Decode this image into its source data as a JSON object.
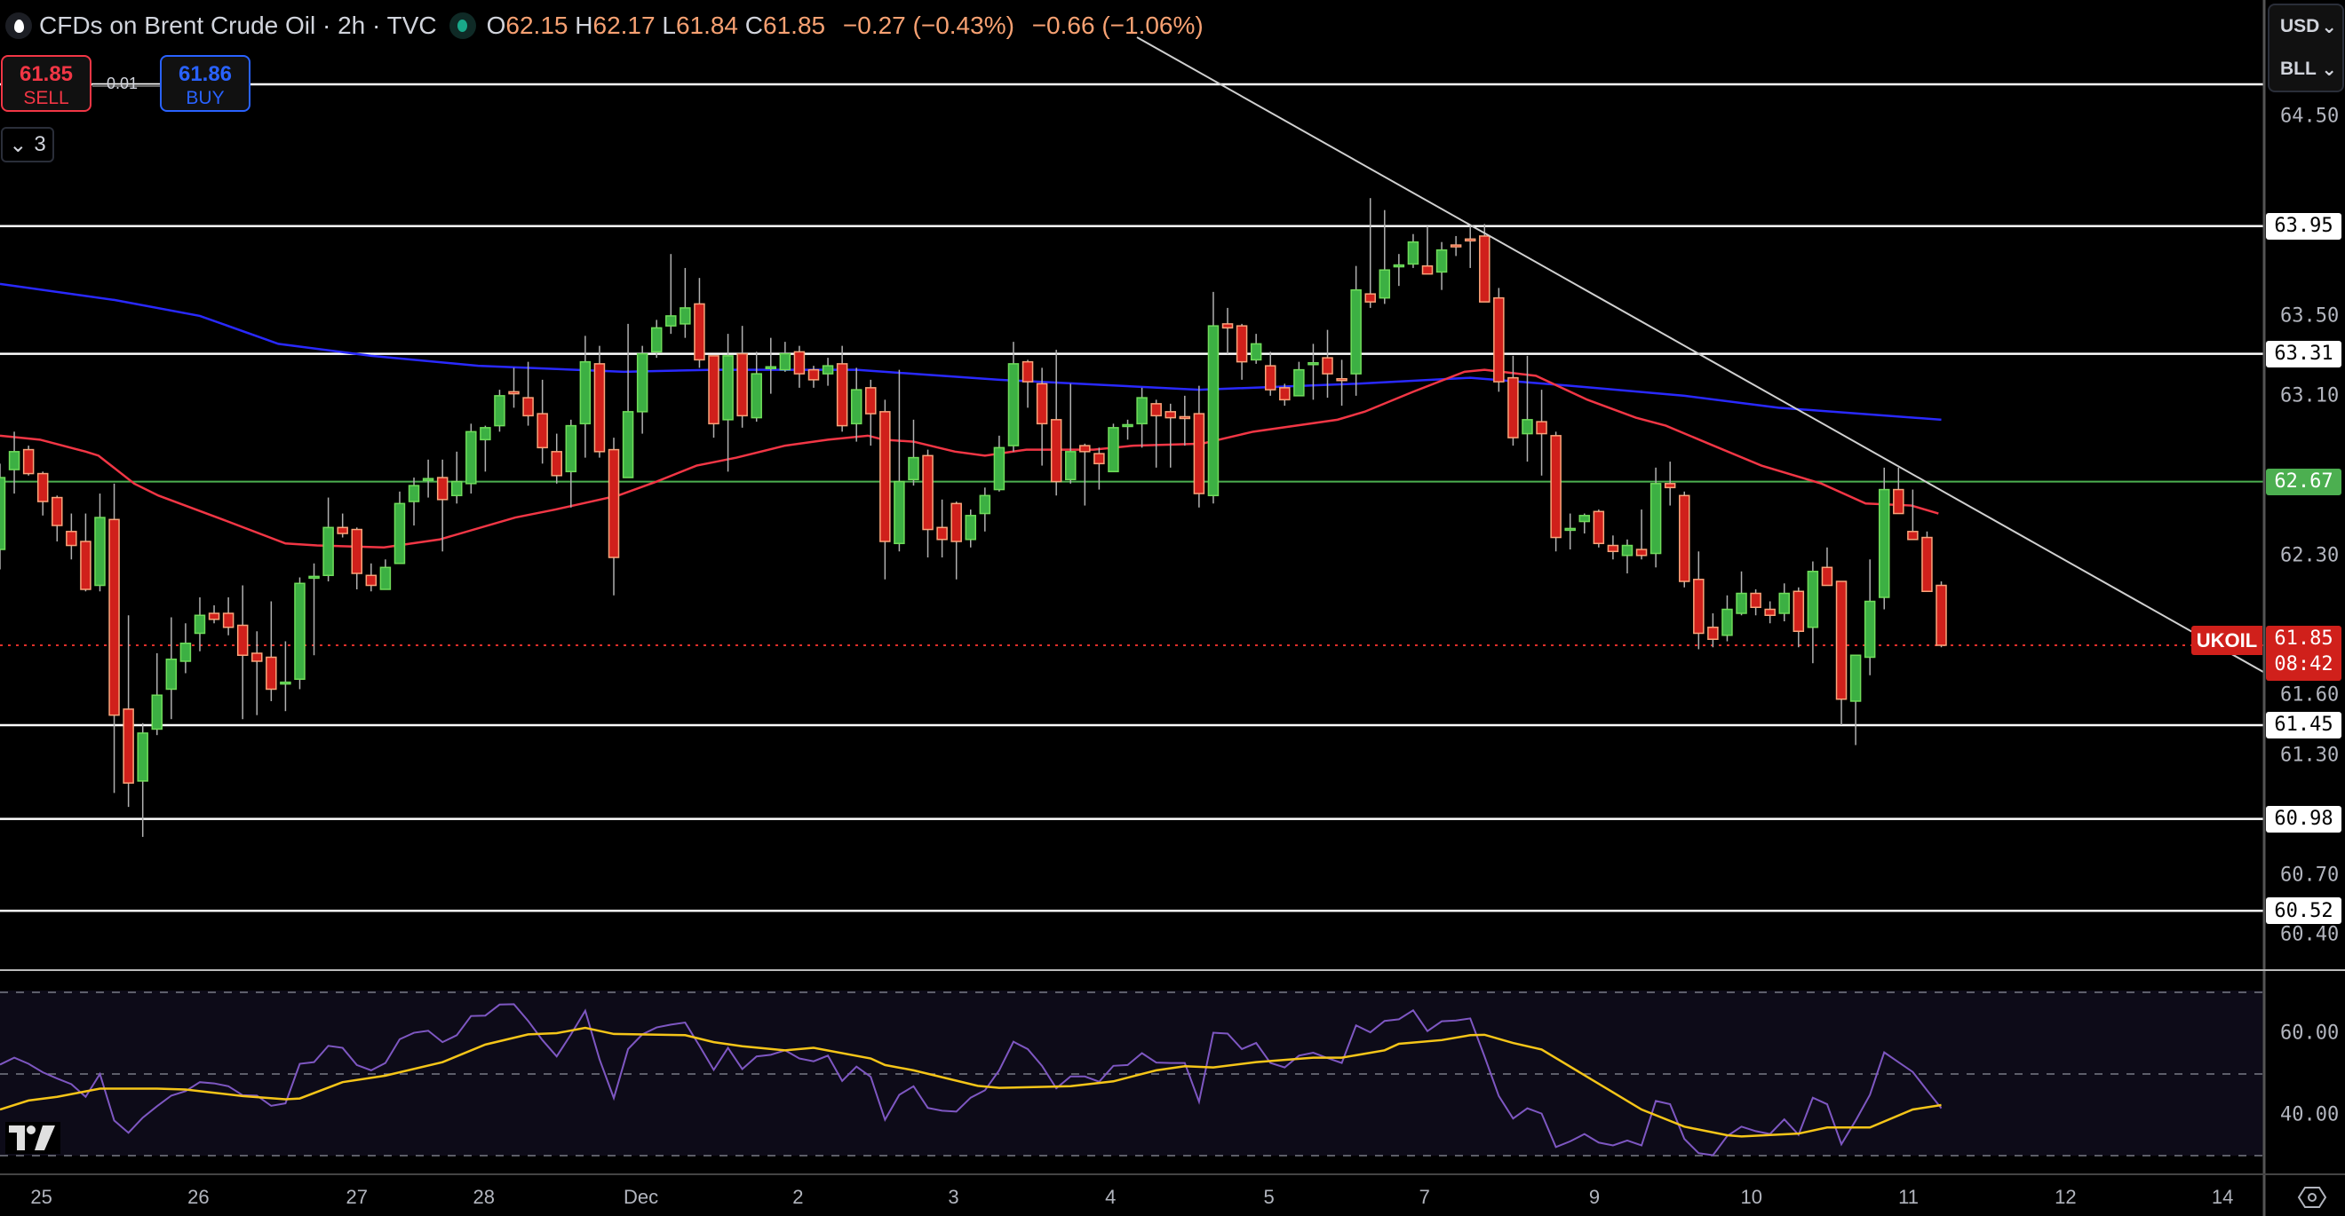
{
  "header": {
    "title": "CFDs on Brent Crude Oil · 2h · TVC",
    "o_label": "O",
    "o": "62.15",
    "h_label": "H",
    "h": "62.17",
    "l_label": "L",
    "l": "61.84",
    "c_label": "C",
    "c": "61.85",
    "change": "−0.27 (−0.43%)",
    "change2": "−0.66 (−1.06%)"
  },
  "trade": {
    "sell_price": "61.85",
    "sell_label": "SELL",
    "buy_price": "61.86",
    "buy_label": "BUY",
    "spread": "0.01"
  },
  "indicators_toggle": {
    "count": "3",
    "icon": "chevron-down-icon"
  },
  "axis_menu": {
    "currency": "USD",
    "unit": "BLL"
  },
  "symbol_tag": "UKOIL",
  "last_price": {
    "price": "61.85",
    "countdown": "08:42"
  },
  "colors": {
    "up": "#3cb043",
    "up_border": "#6fdc5a",
    "down": "#d0201b",
    "down_border": "#f9a47a",
    "ma_fast": "#f23645",
    "ma_slow": "#2929ff",
    "rsi": "#7e57c2",
    "rsi_ma": "#f5c518",
    "support_line": "#ffffff",
    "pivot_line": "#4caf50"
  },
  "chart_data": {
    "type": "candlestick",
    "symbol": "UKOIL",
    "interval": "2h",
    "price_ticks": [
      "64.50",
      "63.50",
      "63.10",
      "62.30",
      "61.60",
      "61.30",
      "60.70",
      "60.40"
    ],
    "levels": [
      {
        "value": 64.66,
        "label": "",
        "kind": "white"
      },
      {
        "value": 63.95,
        "label": "63.95",
        "kind": "white"
      },
      {
        "value": 63.31,
        "label": "63.31",
        "kind": "white"
      },
      {
        "value": 62.67,
        "label": "62.67",
        "kind": "green"
      },
      {
        "value": 61.45,
        "label": "61.45",
        "kind": "white"
      },
      {
        "value": 60.98,
        "label": "60.98",
        "kind": "white"
      },
      {
        "value": 60.52,
        "label": "60.52",
        "kind": "white"
      }
    ],
    "last_close": 61.85,
    "time_ticks": [
      {
        "label": "25",
        "index": 2.9
      },
      {
        "label": "26",
        "index": 13.9
      },
      {
        "label": "27",
        "index": 25
      },
      {
        "label": "28",
        "index": 33.9
      },
      {
        "label": "Dec",
        "index": 44.9
      },
      {
        "label": "2",
        "index": 55.9
      },
      {
        "label": "3",
        "index": 66.8
      },
      {
        "label": "4",
        "index": 77.8
      },
      {
        "label": "5",
        "index": 88.9
      },
      {
        "label": "7",
        "index": 99.8
      },
      {
        "label": "9",
        "index": 111.7
      },
      {
        "label": "10",
        "index": 122.7
      },
      {
        "label": "11",
        "index": 133.7
      },
      {
        "label": "12",
        "index": 144.7
      },
      {
        "label": "14",
        "index": 155.7
      }
    ],
    "ohlc": [
      [
        62.33,
        62.76,
        62.23,
        62.69
      ],
      [
        62.73,
        62.92,
        62.61,
        62.82
      ],
      [
        62.83,
        62.85,
        62.7,
        62.71
      ],
      [
        62.71,
        62.72,
        62.5,
        62.57
      ],
      [
        62.59,
        62.6,
        62.37,
        62.45
      ],
      [
        62.42,
        62.51,
        62.28,
        62.35
      ],
      [
        62.37,
        62.51,
        62.12,
        62.13
      ],
      [
        62.15,
        62.61,
        62.12,
        62.49
      ],
      [
        62.48,
        62.66,
        61.11,
        61.5
      ],
      [
        61.53,
        62.0,
        61.04,
        61.16
      ],
      [
        61.17,
        61.46,
        60.89,
        61.41
      ],
      [
        61.43,
        61.81,
        61.4,
        61.6
      ],
      [
        61.63,
        61.99,
        61.48,
        61.78
      ],
      [
        61.77,
        61.96,
        61.71,
        61.86
      ],
      [
        61.91,
        62.09,
        61.82,
        62.0
      ],
      [
        62.01,
        62.05,
        61.96,
        61.98
      ],
      [
        62.01,
        62.09,
        61.9,
        61.94
      ],
      [
        61.95,
        62.15,
        61.48,
        61.8
      ],
      [
        61.81,
        61.92,
        61.5,
        61.77
      ],
      [
        61.79,
        62.07,
        61.57,
        61.63
      ],
      [
        61.66,
        61.87,
        61.52,
        61.665
      ],
      [
        61.68,
        62.19,
        61.63,
        62.16
      ],
      [
        62.19,
        62.26,
        61.8,
        62.195
      ],
      [
        62.2,
        62.59,
        62.17,
        62.44
      ],
      [
        62.44,
        62.51,
        62.39,
        62.41
      ],
      [
        62.43,
        62.44,
        62.13,
        62.21
      ],
      [
        62.2,
        62.26,
        62.12,
        62.15
      ],
      [
        62.13,
        62.28,
        62.13,
        62.24
      ],
      [
        62.26,
        62.62,
        62.26,
        62.56
      ],
      [
        62.57,
        62.69,
        62.45,
        62.65
      ],
      [
        62.68,
        62.78,
        62.59,
        62.685
      ],
      [
        62.69,
        62.78,
        62.32,
        62.58
      ],
      [
        62.6,
        62.82,
        62.56,
        62.67
      ],
      [
        62.66,
        62.96,
        62.61,
        62.92
      ],
      [
        62.88,
        62.95,
        62.72,
        62.94
      ],
      [
        62.95,
        63.13,
        62.92,
        63.1
      ],
      [
        63.12,
        63.24,
        63.04,
        63.11
      ],
      [
        63.09,
        63.27,
        62.95,
        63.0
      ],
      [
        63.01,
        63.18,
        62.76,
        62.84
      ],
      [
        62.82,
        62.91,
        62.66,
        62.7
      ],
      [
        62.72,
        62.98,
        62.54,
        62.95
      ],
      [
        62.96,
        63.4,
        62.79,
        63.27
      ],
      [
        63.26,
        63.35,
        62.79,
        62.82
      ],
      [
        62.83,
        62.89,
        62.1,
        62.29
      ],
      [
        62.69,
        63.46,
        62.69,
        63.02
      ],
      [
        63.02,
        63.35,
        62.91,
        63.31
      ],
      [
        63.32,
        63.48,
        63.29,
        63.44
      ],
      [
        63.45,
        63.81,
        63.41,
        63.5
      ],
      [
        63.46,
        63.74,
        63.39,
        63.54
      ],
      [
        63.56,
        63.69,
        63.24,
        63.28
      ],
      [
        63.3,
        63.3,
        62.89,
        62.96
      ],
      [
        62.98,
        63.41,
        62.72,
        63.3
      ],
      [
        63.31,
        63.45,
        62.94,
        63.0
      ],
      [
        62.99,
        63.32,
        62.97,
        63.21
      ],
      [
        63.24,
        63.39,
        63.11,
        63.245
      ],
      [
        63.23,
        63.37,
        63.22,
        63.31
      ],
      [
        63.32,
        63.35,
        63.14,
        63.21
      ],
      [
        63.23,
        63.25,
        63.14,
        63.18
      ],
      [
        63.21,
        63.29,
        63.15,
        63.25
      ],
      [
        63.26,
        63.35,
        62.92,
        62.95
      ],
      [
        62.96,
        63.24,
        62.87,
        63.13
      ],
      [
        63.14,
        63.18,
        62.85,
        63.01
      ],
      [
        63.02,
        63.08,
        62.18,
        62.37
      ],
      [
        62.36,
        63.23,
        62.32,
        62.67
      ],
      [
        62.68,
        62.98,
        62.65,
        62.79
      ],
      [
        62.8,
        62.83,
        62.29,
        62.43
      ],
      [
        62.44,
        62.58,
        62.29,
        62.38
      ],
      [
        62.56,
        62.57,
        62.18,
        62.37
      ],
      [
        62.38,
        62.53,
        62.34,
        62.5
      ],
      [
        62.51,
        62.64,
        62.42,
        62.6
      ],
      [
        62.63,
        62.9,
        62.62,
        62.84
      ],
      [
        62.85,
        63.37,
        62.82,
        63.26
      ],
      [
        63.27,
        63.28,
        63.04,
        63.17
      ],
      [
        63.16,
        63.24,
        62.75,
        62.96
      ],
      [
        62.98,
        63.33,
        62.6,
        62.67
      ],
      [
        62.68,
        63.16,
        62.66,
        62.82
      ],
      [
        62.85,
        62.86,
        62.55,
        62.82
      ],
      [
        62.81,
        62.84,
        62.63,
        62.76
      ],
      [
        62.72,
        62.96,
        62.72,
        62.94
      ],
      [
        62.95,
        62.98,
        62.88,
        62.955
      ],
      [
        62.96,
        63.14,
        62.84,
        63.09
      ],
      [
        63.06,
        63.08,
        62.74,
        63.0
      ],
      [
        63.02,
        63.06,
        62.74,
        62.99
      ],
      [
        62.995,
        63.1,
        62.85,
        62.99
      ],
      [
        63.01,
        63.15,
        62.54,
        62.61
      ],
      [
        62.6,
        63.62,
        62.56,
        63.45
      ],
      [
        63.46,
        63.54,
        63.31,
        63.44
      ],
      [
        63.45,
        63.46,
        63.18,
        63.27
      ],
      [
        63.28,
        63.41,
        63.26,
        63.36
      ],
      [
        63.25,
        63.32,
        63.1,
        63.13
      ],
      [
        63.14,
        63.16,
        63.05,
        63.08
      ],
      [
        63.1,
        63.27,
        63.1,
        63.23
      ],
      [
        63.26,
        63.36,
        63.08,
        63.265
      ],
      [
        63.29,
        63.43,
        63.09,
        63.21
      ],
      [
        63.185,
        63.28,
        63.05,
        63.18
      ],
      [
        63.21,
        63.75,
        63.1,
        63.63
      ],
      [
        63.61,
        64.09,
        63.54,
        63.57
      ],
      [
        63.59,
        64.03,
        63.56,
        63.73
      ],
      [
        63.75,
        63.81,
        63.65,
        63.755
      ],
      [
        63.76,
        63.91,
        63.74,
        63.87
      ],
      [
        63.75,
        63.95,
        63.71,
        63.71
      ],
      [
        63.72,
        63.87,
        63.63,
        63.83
      ],
      [
        63.855,
        63.9,
        63.8,
        63.85
      ],
      [
        63.885,
        63.95,
        63.74,
        63.88
      ],
      [
        63.9,
        63.96,
        63.57,
        63.57
      ],
      [
        63.59,
        63.64,
        63.12,
        63.17
      ],
      [
        63.19,
        63.3,
        62.85,
        62.89
      ],
      [
        62.91,
        63.3,
        62.77,
        62.98
      ],
      [
        62.97,
        63.13,
        62.7,
        62.91
      ],
      [
        62.9,
        62.92,
        62.32,
        62.39
      ],
      [
        62.43,
        62.51,
        62.33,
        62.435
      ],
      [
        62.47,
        62.51,
        62.41,
        62.5
      ],
      [
        62.52,
        62.53,
        62.34,
        62.36
      ],
      [
        62.35,
        62.4,
        62.28,
        62.32
      ],
      [
        62.3,
        62.38,
        62.21,
        62.35
      ],
      [
        62.33,
        62.53,
        62.28,
        62.3
      ],
      [
        62.31,
        62.74,
        62.24,
        62.66
      ],
      [
        62.66,
        62.77,
        62.55,
        62.64
      ],
      [
        62.6,
        62.62,
        62.14,
        62.17
      ],
      [
        62.18,
        62.32,
        61.83,
        61.91
      ],
      [
        61.94,
        62.01,
        61.84,
        61.88
      ],
      [
        61.9,
        62.1,
        61.87,
        62.03
      ],
      [
        62.01,
        62.22,
        62.0,
        62.11
      ],
      [
        62.11,
        62.13,
        62.0,
        62.04
      ],
      [
        62.03,
        62.07,
        61.96,
        62.0
      ],
      [
        62.01,
        62.16,
        61.97,
        62.11
      ],
      [
        62.12,
        62.14,
        61.84,
        61.92
      ],
      [
        61.94,
        62.27,
        61.76,
        62.22
      ],
      [
        62.24,
        62.34,
        62.15,
        62.15
      ],
      [
        62.17,
        62.17,
        61.45,
        61.58
      ],
      [
        61.57,
        61.8,
        61.35,
        61.8
      ],
      [
        61.79,
        62.28,
        61.7,
        62.07
      ],
      [
        62.09,
        62.74,
        62.03,
        62.63
      ],
      [
        62.63,
        62.74,
        62.51,
        62.51
      ],
      [
        62.42,
        62.63,
        62.38,
        62.38
      ],
      [
        62.39,
        62.42,
        62.12,
        62.12
      ],
      [
        62.15,
        62.17,
        61.84,
        61.85
      ]
    ],
    "ma_slow": [
      [
        0,
        63.66
      ],
      [
        8,
        63.58
      ],
      [
        14,
        63.5
      ],
      [
        19.5,
        63.36
      ],
      [
        26,
        63.3
      ],
      [
        33.5,
        63.25
      ],
      [
        43.7,
        63.22
      ],
      [
        50,
        63.23
      ],
      [
        60,
        63.23
      ],
      [
        70,
        63.18
      ],
      [
        84,
        63.13
      ],
      [
        95,
        63.16
      ],
      [
        103,
        63.19
      ],
      [
        110,
        63.15
      ],
      [
        118,
        63.1
      ],
      [
        124.6,
        63.04
      ],
      [
        136,
        62.98
      ]
    ],
    "ma_fast": [
      [
        0,
        62.9
      ],
      [
        2.8,
        62.88
      ],
      [
        6,
        62.82
      ],
      [
        6.9,
        62.8
      ],
      [
        9.4,
        62.66
      ],
      [
        11.1,
        62.6
      ],
      [
        15.6,
        62.48
      ],
      [
        20,
        62.36
      ],
      [
        22.2,
        62.35
      ],
      [
        26.9,
        62.34
      ],
      [
        30.8,
        62.38
      ],
      [
        36.1,
        62.49
      ],
      [
        38.9,
        62.53
      ],
      [
        43.3,
        62.6
      ],
      [
        46,
        62.67
      ],
      [
        48.8,
        62.75
      ],
      [
        51.6,
        62.79
      ],
      [
        55,
        62.85
      ],
      [
        58,
        62.88
      ],
      [
        60.8,
        62.9
      ],
      [
        61.9,
        62.88
      ],
      [
        64,
        62.87
      ],
      [
        66.9,
        62.82
      ],
      [
        69,
        62.8
      ],
      [
        71.9,
        62.83
      ],
      [
        76.6,
        62.83
      ],
      [
        79.4,
        62.85
      ],
      [
        84.2,
        62.86
      ],
      [
        87.8,
        62.92
      ],
      [
        93.7,
        62.98
      ],
      [
        95.6,
        63.02
      ],
      [
        99,
        63.12
      ],
      [
        102.6,
        63.22
      ],
      [
        104,
        63.23
      ],
      [
        107.6,
        63.2
      ],
      [
        111.2,
        63.08
      ],
      [
        114.6,
        62.99
      ],
      [
        116.7,
        62.95
      ],
      [
        119.7,
        62.86
      ],
      [
        123.4,
        62.75
      ],
      [
        127.6,
        62.66
      ],
      [
        130.7,
        62.56
      ],
      [
        133.9,
        62.55
      ],
      [
        135.8,
        62.51
      ]
    ],
    "rsi_ticks": [
      "60.00",
      "40.00"
    ],
    "rsi_levels": [
      70,
      50,
      30
    ],
    "rsi": [
      52.3,
      54.0,
      52.5,
      50.4,
      48.9,
      47.5,
      44.4,
      50.0,
      38.6,
      35.6,
      39.3,
      42.1,
      44.7,
      45.8,
      48.0,
      47.7,
      47.0,
      44.8,
      44.7,
      42.2,
      42.8,
      52.5,
      52.9,
      56.9,
      56.4,
      52.2,
      50.9,
      52.7,
      58.5,
      60.1,
      60.6,
      57.8,
      59.5,
      64.2,
      64.3,
      67.0,
      67.1,
      63.0,
      58.3,
      54.3,
      59.7,
      65.5,
      53.6,
      44.1,
      56.1,
      59.7,
      61.4,
      62.1,
      62.6,
      56.9,
      51.0,
      56.4,
      51.2,
      54.3,
      54.7,
      55.8,
      53.8,
      53.1,
      54.5,
      48.3,
      51.8,
      49.3,
      38.8,
      44.9,
      47.0,
      41.7,
      41.0,
      40.8,
      44.2,
      46.0,
      50.9,
      57.9,
      56.1,
      52.0,
      46.5,
      49.4,
      49.4,
      48.1,
      52.0,
      52.2,
      55.1,
      52.8,
      52.7,
      52.7,
      43.2,
      60.1,
      59.9,
      56.1,
      57.6,
      52.7,
      51.6,
      54.5,
      55.2,
      53.9,
      52.7,
      61.9,
      60.2,
      63.0,
      63.4,
      65.6,
      60.5,
      62.9,
      63.1,
      63.6,
      54.3,
      44.6,
      39.1,
      41.6,
      40.3,
      32.1,
      33.5,
      35.3,
      33.2,
      32.5,
      33.7,
      32.5,
      43.4,
      42.6,
      34.1,
      30.6,
      30.1,
      34.8,
      37.1,
      36.0,
      35.3,
      38.9,
      35.1,
      44.2,
      42.6,
      32.8,
      38.6,
      44.9,
      55.3,
      52.9,
      50.5,
      46.0,
      41.6
    ],
    "rsi_ma": [
      [
        0,
        41.3
      ],
      [
        2,
        43.5
      ],
      [
        4,
        44.4
      ],
      [
        7,
        46.4
      ],
      [
        11,
        46.4
      ],
      [
        13,
        46.2
      ],
      [
        17,
        44.6
      ],
      [
        20,
        43.8
      ],
      [
        21,
        44.0
      ],
      [
        24,
        48.0
      ],
      [
        27,
        49.6
      ],
      [
        31,
        52.9
      ],
      [
        34,
        57.2
      ],
      [
        37,
        59.7
      ],
      [
        39,
        60.0
      ],
      [
        41,
        61.3
      ],
      [
        43,
        59.8
      ],
      [
        48,
        59.5
      ],
      [
        50,
        57.8
      ],
      [
        52,
        56.8
      ],
      [
        55,
        55.8
      ],
      [
        57,
        56.4
      ],
      [
        61,
        53.8
      ],
      [
        62,
        52.2
      ],
      [
        64,
        50.9
      ],
      [
        68.5,
        47.1
      ],
      [
        70,
        46.6
      ],
      [
        75,
        47.0
      ],
      [
        78,
        48.2
      ],
      [
        81,
        50.9
      ],
      [
        83,
        51.9
      ],
      [
        85,
        51.6
      ],
      [
        88,
        52.9
      ],
      [
        92,
        54.0
      ],
      [
        94,
        54.0
      ],
      [
        97,
        55.8
      ],
      [
        98,
        57.4
      ],
      [
        101,
        58.3
      ],
      [
        103,
        59.5
      ],
      [
        104,
        59.6
      ],
      [
        106,
        57.6
      ],
      [
        108,
        56.0
      ],
      [
        113,
        45.5
      ],
      [
        115,
        41.3
      ],
      [
        118,
        37.1
      ],
      [
        121,
        35.0
      ],
      [
        122,
        34.7
      ],
      [
        126,
        35.4
      ],
      [
        128,
        36.9
      ],
      [
        131,
        36.9
      ],
      [
        134,
        41.3
      ],
      [
        136,
        42.4
      ]
    ]
  }
}
